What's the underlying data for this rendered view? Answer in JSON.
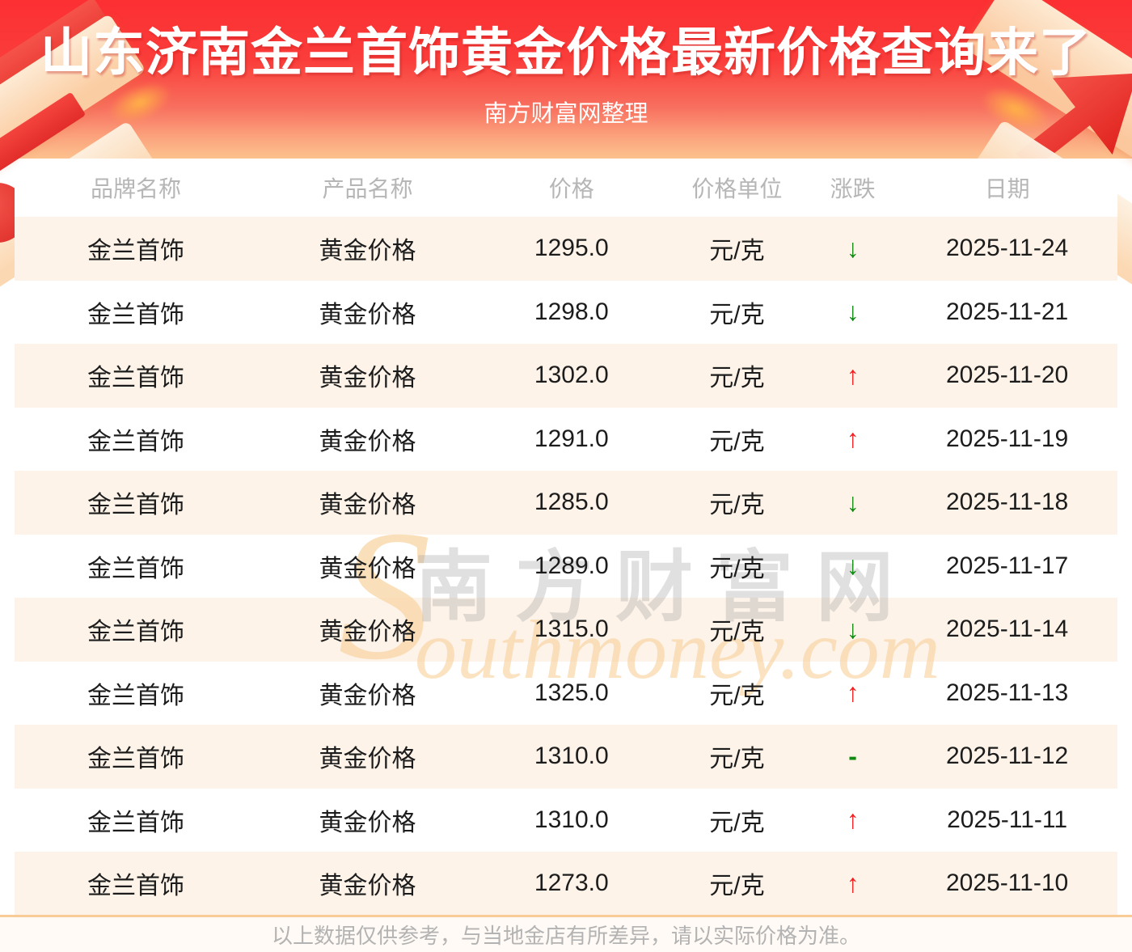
{
  "header": {
    "title": "山东济南金兰首饰黄金价格最新价格查询来了",
    "subtitle": "南方财富网整理"
  },
  "table": {
    "columns": [
      "品牌名称",
      "产品名称",
      "价格",
      "价格单位",
      "涨跌",
      "日期"
    ],
    "rows": [
      {
        "brand": "金兰首饰",
        "product": "黄金价格",
        "price": "1295.0",
        "unit": "元/克",
        "change": "↓",
        "dir": "down",
        "date": "2025-11-24"
      },
      {
        "brand": "金兰首饰",
        "product": "黄金价格",
        "price": "1298.0",
        "unit": "元/克",
        "change": "↓",
        "dir": "down",
        "date": "2025-11-21"
      },
      {
        "brand": "金兰首饰",
        "product": "黄金价格",
        "price": "1302.0",
        "unit": "元/克",
        "change": "↑",
        "dir": "up",
        "date": "2025-11-20"
      },
      {
        "brand": "金兰首饰",
        "product": "黄金价格",
        "price": "1291.0",
        "unit": "元/克",
        "change": "↑",
        "dir": "up",
        "date": "2025-11-19"
      },
      {
        "brand": "金兰首饰",
        "product": "黄金价格",
        "price": "1285.0",
        "unit": "元/克",
        "change": "↓",
        "dir": "down",
        "date": "2025-11-18"
      },
      {
        "brand": "金兰首饰",
        "product": "黄金价格",
        "price": "1289.0",
        "unit": "元/克",
        "change": "↓",
        "dir": "down",
        "date": "2025-11-17"
      },
      {
        "brand": "金兰首饰",
        "product": "黄金价格",
        "price": "1315.0",
        "unit": "元/克",
        "change": "↓",
        "dir": "down",
        "date": "2025-11-14"
      },
      {
        "brand": "金兰首饰",
        "product": "黄金价格",
        "price": "1325.0",
        "unit": "元/克",
        "change": "↑",
        "dir": "up",
        "date": "2025-11-13"
      },
      {
        "brand": "金兰首饰",
        "product": "黄金价格",
        "price": "1310.0",
        "unit": "元/克",
        "change": "-",
        "dir": "flat",
        "date": "2025-11-12"
      },
      {
        "brand": "金兰首饰",
        "product": "黄金价格",
        "price": "1310.0",
        "unit": "元/克",
        "change": "↑",
        "dir": "up",
        "date": "2025-11-11"
      },
      {
        "brand": "金兰首饰",
        "product": "黄金价格",
        "price": "1273.0",
        "unit": "元/克",
        "change": "↑",
        "dir": "up",
        "date": "2025-11-10"
      }
    ]
  },
  "watermark": {
    "initial": "S",
    "cn": "南方财富网",
    "en": "outhmoney.com"
  },
  "footer": {
    "disclaimer": "以上数据仅供参考，与当地金店有所差异，请以实际价格为准。"
  },
  "colors": {
    "banner_top": "#fc2f33",
    "banner_bottom": "#fcc28e",
    "row_alt": "#fdf3e9",
    "up": "#f31e1e",
    "down": "#0e8a0e",
    "divider": "#f9cb96",
    "header_text": "#b6b6b6"
  }
}
